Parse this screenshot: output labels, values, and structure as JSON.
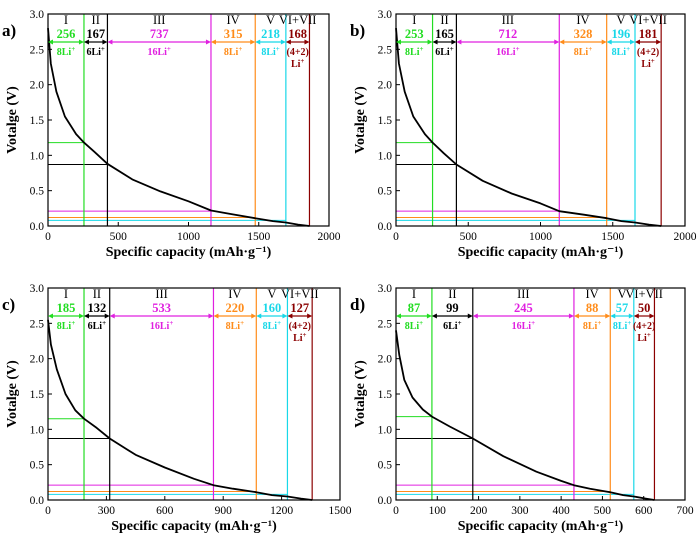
{
  "chart_data": [
    {
      "type": "line",
      "panel_label": "a)",
      "xlabel": "Specific capacity (mAh·g⁻¹)",
      "ylabel": "Votalge (V)",
      "xlim": [
        0,
        2000
      ],
      "ylim": [
        0,
        3.0
      ],
      "x_ticks": [
        0,
        500,
        1000,
        1500,
        2000
      ],
      "y_ticks": [
        0.0,
        0.5,
        1.0,
        1.5,
        2.0,
        2.5,
        3.0
      ],
      "curve": {
        "x": [
          0,
          20,
          60,
          120,
          200,
          256,
          330,
          423,
          600,
          800,
          1000,
          1160,
          1300,
          1475,
          1600,
          1693,
          1780,
          1861
        ],
        "y": [
          2.8,
          2.3,
          1.9,
          1.55,
          1.3,
          1.18,
          1.05,
          0.88,
          0.66,
          0.49,
          0.35,
          0.22,
          0.17,
          0.11,
          0.07,
          0.05,
          0.02,
          0.0
        ]
      },
      "regions": [
        {
          "roman": "I",
          "capacity": "256",
          "li": "8Li",
          "li_sup": "+",
          "start": 0,
          "end": 256,
          "voltage": 1.18,
          "color": "#22dd22"
        },
        {
          "roman": "II",
          "capacity": "167",
          "li": "6Li",
          "li_sup": "+",
          "start": 256,
          "end": 423,
          "voltage": 0.87,
          "color": "#000000"
        },
        {
          "roman": "III",
          "capacity": "737",
          "li": "16Li",
          "li_sup": "+",
          "start": 423,
          "end": 1160,
          "voltage": 0.21,
          "color": "#e020e0"
        },
        {
          "roman": "IV",
          "capacity": "315",
          "li": "8Li",
          "li_sup": "+",
          "start": 1160,
          "end": 1475,
          "voltage": 0.12,
          "color": "#ff8c1a"
        },
        {
          "roman": "V",
          "capacity": "218",
          "li": "8Li",
          "li_sup": "+",
          "start": 1475,
          "end": 1693,
          "voltage": 0.08,
          "color": "#18d8e8"
        },
        {
          "roman": "VI+VII",
          "capacity": "168",
          "li": "(4+2)",
          "li2": "Li",
          "li_sup": "+",
          "start": 1693,
          "end": 1861,
          "voltage": 0.0,
          "color": "#8b0000"
        }
      ]
    },
    {
      "type": "line",
      "panel_label": "b)",
      "xlabel": "Specific capacity (mAh·g⁻¹)",
      "ylabel": "Votalge (V)",
      "xlim": [
        0,
        2000
      ],
      "ylim": [
        0,
        3.0
      ],
      "x_ticks": [
        0,
        500,
        1000,
        1500,
        2000
      ],
      "y_ticks": [
        0.0,
        0.5,
        1.0,
        1.5,
        2.0,
        2.5,
        3.0
      ],
      "curve": {
        "x": [
          0,
          20,
          60,
          120,
          200,
          253,
          330,
          418,
          600,
          800,
          1000,
          1130,
          1300,
          1458,
          1560,
          1654,
          1750,
          1835
        ],
        "y": [
          2.8,
          2.3,
          1.9,
          1.55,
          1.3,
          1.18,
          1.03,
          0.87,
          0.64,
          0.46,
          0.32,
          0.21,
          0.16,
          0.11,
          0.07,
          0.05,
          0.02,
          0.0
        ]
      },
      "regions": [
        {
          "roman": "I",
          "capacity": "253",
          "li": "8Li",
          "li_sup": "+",
          "start": 0,
          "end": 253,
          "voltage": 1.18,
          "color": "#22dd22"
        },
        {
          "roman": "II",
          "capacity": "165",
          "li": "6Li",
          "li_sup": "+",
          "start": 253,
          "end": 418,
          "voltage": 0.87,
          "color": "#000000"
        },
        {
          "roman": "III",
          "capacity": "712",
          "li": "16Li",
          "li_sup": "+",
          "start": 418,
          "end": 1130,
          "voltage": 0.21,
          "color": "#e020e0"
        },
        {
          "roman": "IV",
          "capacity": "328",
          "li": "8Li",
          "li_sup": "+",
          "start": 1130,
          "end": 1458,
          "voltage": 0.12,
          "color": "#ff8c1a"
        },
        {
          "roman": "V",
          "capacity": "196",
          "li": "8Li",
          "li_sup": "+",
          "start": 1458,
          "end": 1654,
          "voltage": 0.08,
          "color": "#18d8e8"
        },
        {
          "roman": "VI+VII",
          "capacity": "181",
          "li": "(4+2)",
          "li2": "Li",
          "li_sup": "+",
          "start": 1654,
          "end": 1835,
          "voltage": 0.0,
          "color": "#8b0000"
        }
      ]
    },
    {
      "type": "line",
      "panel_label": "c)",
      "xlabel": "Specific capacity (mAh·g⁻¹)",
      "ylabel": "Votalge (V)",
      "xlim": [
        0,
        1500
      ],
      "ylim": [
        0,
        3.0
      ],
      "x_ticks": [
        0,
        300,
        600,
        900,
        1200,
        1500
      ],
      "y_ticks": [
        0.0,
        0.5,
        1.0,
        1.5,
        2.0,
        2.5,
        3.0
      ],
      "curve": {
        "x": [
          0,
          15,
          45,
          90,
          140,
          185,
          250,
          317,
          450,
          600,
          750,
          850,
          950,
          1070,
          1150,
          1230,
          1300,
          1357
        ],
        "y": [
          2.55,
          2.2,
          1.85,
          1.5,
          1.27,
          1.15,
          1.02,
          0.87,
          0.64,
          0.46,
          0.3,
          0.21,
          0.16,
          0.11,
          0.07,
          0.05,
          0.02,
          0.0
        ]
      },
      "regions": [
        {
          "roman": "I",
          "capacity": "185",
          "li": "8Li",
          "li_sup": "+",
          "start": 0,
          "end": 185,
          "voltage": 1.15,
          "color": "#22dd22"
        },
        {
          "roman": "II",
          "capacity": "132",
          "li": "6Li",
          "li_sup": "+",
          "start": 185,
          "end": 317,
          "voltage": 0.87,
          "color": "#000000"
        },
        {
          "roman": "III",
          "capacity": "533",
          "li": "16Li",
          "li_sup": "+",
          "start": 317,
          "end": 850,
          "voltage": 0.21,
          "color": "#e020e0"
        },
        {
          "roman": "IV",
          "capacity": "220",
          "li": "8Li",
          "li_sup": "+",
          "start": 850,
          "end": 1070,
          "voltage": 0.12,
          "color": "#ff8c1a"
        },
        {
          "roman": "V",
          "capacity": "160",
          "li": "8Li",
          "li_sup": "+",
          "start": 1070,
          "end": 1230,
          "voltage": 0.08,
          "color": "#18d8e8"
        },
        {
          "roman": "VI+VII",
          "capacity": "127",
          "li": "(4+2)",
          "li2": "Li",
          "li_sup": "+",
          "start": 1230,
          "end": 1357,
          "voltage": 0.0,
          "color": "#8b0000"
        }
      ]
    },
    {
      "type": "line",
      "panel_label": "d)",
      "xlabel": "Specific capacity (mAh·g⁻¹)",
      "ylabel": "Votalge (V)",
      "xlim": [
        0,
        700
      ],
      "ylim": [
        0,
        3.0
      ],
      "x_ticks": [
        0,
        100,
        200,
        300,
        400,
        500,
        600,
        700
      ],
      "y_ticks": [
        0.0,
        0.5,
        1.0,
        1.5,
        2.0,
        2.5,
        3.0
      ],
      "curve": {
        "x": [
          0,
          8,
          20,
          40,
          65,
          87,
          130,
          186,
          260,
          340,
          400,
          431,
          470,
          519,
          550,
          576,
          605,
          626
        ],
        "y": [
          2.4,
          2.05,
          1.7,
          1.45,
          1.28,
          1.18,
          1.04,
          0.87,
          0.62,
          0.4,
          0.27,
          0.21,
          0.16,
          0.11,
          0.07,
          0.05,
          0.02,
          0.0
        ]
      },
      "regions": [
        {
          "roman": "I",
          "capacity": "87",
          "li": "8Li",
          "li_sup": "+",
          "start": 0,
          "end": 87,
          "voltage": 1.18,
          "color": "#22dd22"
        },
        {
          "roman": "II",
          "capacity": "99",
          "li": "6Li",
          "li_sup": "+",
          "start": 87,
          "end": 186,
          "voltage": 0.87,
          "color": "#000000"
        },
        {
          "roman": "III",
          "capacity": "245",
          "li": "16Li",
          "li_sup": "+",
          "start": 186,
          "end": 431,
          "voltage": 0.21,
          "color": "#e020e0"
        },
        {
          "roman": "IV",
          "capacity": "88",
          "li": "8Li",
          "li_sup": "+",
          "start": 431,
          "end": 519,
          "voltage": 0.12,
          "color": "#ff8c1a"
        },
        {
          "roman": "V",
          "capacity": "57",
          "li": "8Li",
          "li_sup": "+",
          "start": 519,
          "end": 576,
          "voltage": 0.08,
          "color": "#18d8e8"
        },
        {
          "roman": "VI+VII",
          "capacity": "50",
          "li": "(4+2)",
          "li2": "Li",
          "li_sup": "+",
          "start": 576,
          "end": 626,
          "voltage": 0.0,
          "color": "#8b0000"
        }
      ]
    }
  ]
}
